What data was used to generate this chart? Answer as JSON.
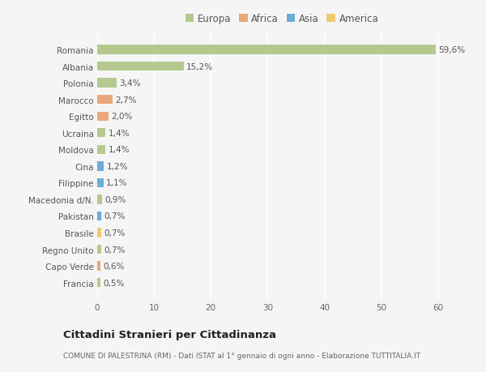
{
  "categories": [
    "Francia",
    "Capo Verde",
    "Regno Unito",
    "Brasile",
    "Pakistan",
    "Macedonia d/N.",
    "Filippine",
    "Cina",
    "Moldova",
    "Ucraina",
    "Egitto",
    "Marocco",
    "Polonia",
    "Albania",
    "Romania"
  ],
  "values": [
    0.5,
    0.6,
    0.7,
    0.7,
    0.7,
    0.9,
    1.1,
    1.2,
    1.4,
    1.4,
    2.0,
    2.7,
    3.4,
    15.2,
    59.6
  ],
  "labels": [
    "0,5%",
    "0,6%",
    "0,7%",
    "0,7%",
    "0,7%",
    "0,9%",
    "1,1%",
    "1,2%",
    "1,4%",
    "1,4%",
    "2,0%",
    "2,7%",
    "3,4%",
    "15,2%",
    "59,6%"
  ],
  "colors": [
    "#b5c98e",
    "#e8a87c",
    "#b5c98e",
    "#f0c96e",
    "#6baed6",
    "#b5c98e",
    "#6baed6",
    "#6baed6",
    "#b5c98e",
    "#b5c98e",
    "#e8a87c",
    "#e8a87c",
    "#b5c98e",
    "#b5c98e",
    "#b5c98e"
  ],
  "legend_labels": [
    "Europa",
    "Africa",
    "Asia",
    "America"
  ],
  "legend_colors": [
    "#b5c98e",
    "#e8a87c",
    "#6baed6",
    "#f0c96e"
  ],
  "xlim": [
    0,
    65
  ],
  "xticks": [
    0,
    10,
    20,
    30,
    40,
    50,
    60
  ],
  "title": "Cittadini Stranieri per Cittadinanza",
  "subtitle": "COMUNE DI PALESTRINA (RM) - Dati ISTAT al 1° gennaio di ogni anno - Elaborazione TUTTITALIA.IT",
  "background_color": "#f5f5f5",
  "bar_height": 0.55,
  "grid_color": "#ffffff",
  "label_fontsize": 7.5,
  "tick_fontsize": 7.5,
  "title_fontsize": 9.5,
  "subtitle_fontsize": 6.5
}
